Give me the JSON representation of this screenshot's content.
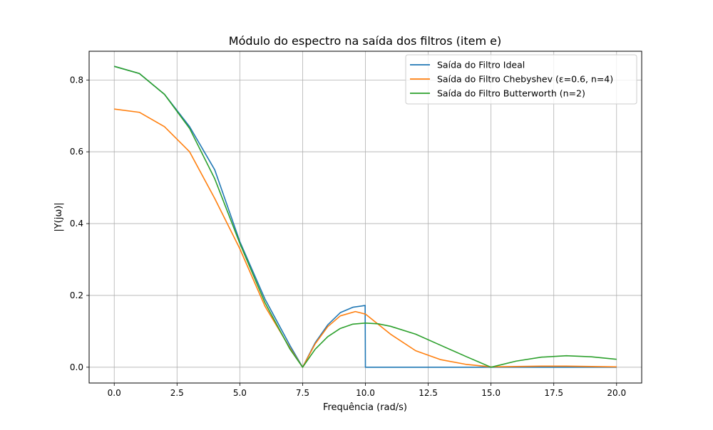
{
  "chart_data": {
    "type": "line",
    "title": "Módulo do espectro na saída dos filtros (item e)",
    "xlabel": "Frequência (rad/s)",
    "ylabel": "|Y(jω)|",
    "xlim": [
      -1.0,
      21.0
    ],
    "ylim": [
      -0.044,
      0.88
    ],
    "x_ticks": [
      0.0,
      2.5,
      5.0,
      7.5,
      10.0,
      12.5,
      15.0,
      17.5,
      20.0
    ],
    "x_tick_labels": [
      "0.0",
      "2.5",
      "5.0",
      "7.5",
      "10.0",
      "12.5",
      "15.0",
      "17.5",
      "20.0"
    ],
    "y_ticks": [
      0.0,
      0.2,
      0.4,
      0.6,
      0.8
    ],
    "y_tick_labels": [
      "0.0",
      "0.2",
      "0.4",
      "0.6",
      "0.8"
    ],
    "grid": true,
    "legend_position": "upper right",
    "series": [
      {
        "name": "Saída do Filtro Ideal",
        "color": "#1f77b4",
        "x": [
          0,
          1,
          2,
          3,
          4,
          5,
          6,
          7,
          7.5,
          8,
          8.5,
          9,
          9.5,
          9.99,
          10.0,
          11,
          12,
          13,
          14,
          15,
          16,
          17,
          18,
          19,
          20
        ],
        "y": [
          0.838,
          0.818,
          0.76,
          0.67,
          0.55,
          0.35,
          0.19,
          0.06,
          0.0,
          0.068,
          0.118,
          0.152,
          0.167,
          0.172,
          0.0,
          0.0,
          0.0,
          0.0,
          0.0,
          0.0,
          0.0,
          0.0,
          0.0,
          0.0,
          0.0
        ]
      },
      {
        "name": "Saída do Filtro Chebyshev (ε=0.6, n=4)",
        "color": "#ff7f0e",
        "x": [
          0,
          1,
          2,
          3,
          4,
          5,
          6,
          7,
          7.5,
          8,
          8.5,
          9,
          9.6,
          10,
          11,
          12,
          13,
          14,
          15,
          16,
          17,
          18,
          19,
          20
        ],
        "y": [
          0.719,
          0.71,
          0.67,
          0.6,
          0.47,
          0.33,
          0.17,
          0.053,
          0.0,
          0.065,
          0.113,
          0.143,
          0.155,
          0.148,
          0.092,
          0.046,
          0.021,
          0.008,
          0.001,
          0.002,
          0.003,
          0.003,
          0.002,
          0.001
        ]
      },
      {
        "name": "Saída do Filtro Butterworth (n=2)",
        "color": "#2ca02c",
        "x": [
          0,
          1,
          2,
          3,
          4,
          5,
          6,
          7,
          7.5,
          8,
          8.5,
          9,
          9.5,
          10,
          10.5,
          11,
          12,
          13,
          14,
          15,
          16,
          17,
          18,
          19,
          20
        ],
        "y": [
          0.838,
          0.818,
          0.76,
          0.665,
          0.525,
          0.345,
          0.18,
          0.05,
          0.0,
          0.05,
          0.085,
          0.108,
          0.12,
          0.123,
          0.121,
          0.114,
          0.092,
          0.061,
          0.03,
          0.0,
          0.017,
          0.028,
          0.032,
          0.029,
          0.022
        ]
      }
    ]
  }
}
